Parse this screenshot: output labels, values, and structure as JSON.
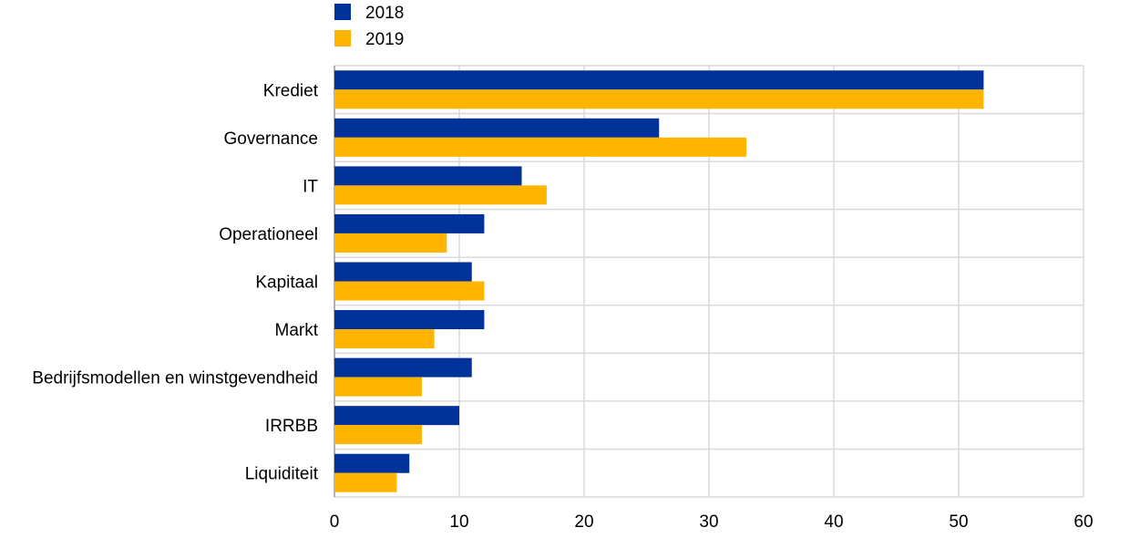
{
  "chart_data": {
    "type": "bar",
    "orientation": "horizontal",
    "categories": [
      "Krediet",
      "Governance",
      "IT",
      "Operationeel",
      "Kapitaal",
      "Markt",
      "Bedrijfsmodellen en winstgevendheid",
      "IRRBB",
      "Liquiditeit"
    ],
    "series": [
      {
        "name": "2018",
        "values": [
          52,
          26,
          15,
          12,
          11,
          12,
          11,
          10,
          6
        ]
      },
      {
        "name": "2019",
        "values": [
          52,
          33,
          17,
          9,
          12,
          8,
          7,
          7,
          5
        ]
      }
    ],
    "xlim": [
      0,
      60
    ],
    "xticks": [
      "0",
      "10",
      "20",
      "30",
      "40",
      "50",
      "60"
    ],
    "grid": true,
    "legend_position": "top-left"
  },
  "colors": {
    "series_2018": "#003299",
    "series_2019": "#FFB400",
    "grid": "#d9d9d9"
  }
}
